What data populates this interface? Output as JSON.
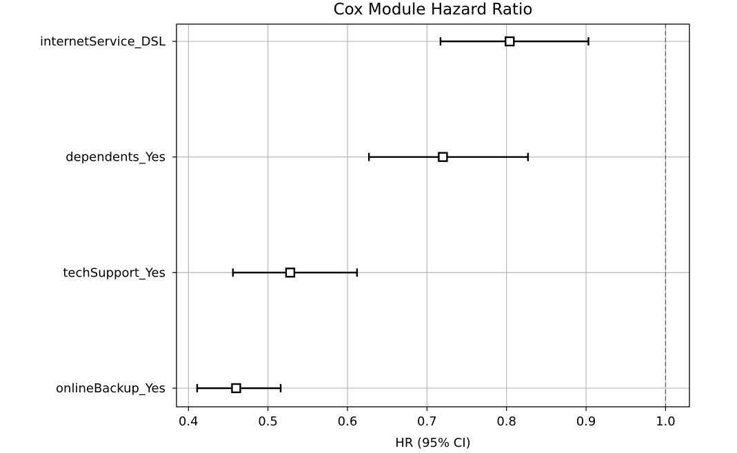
{
  "chart_data": {
    "type": "scatter",
    "title": "Cox Module Hazard Ratio",
    "xlabel": "HR (95% CI)",
    "ylabel": "",
    "xlim": [
      0.385,
      1.03
    ],
    "xticks": [
      0.4,
      0.5,
      0.6,
      0.7,
      0.8,
      0.9,
      1.0
    ],
    "xtick_labels": [
      "0.4",
      "0.5",
      "0.6",
      "0.7",
      "0.8",
      "0.9",
      "1.0"
    ],
    "grid": true,
    "reference_line": 1.0,
    "categories": [
      "internetService_DSL",
      "dependents_Yes",
      "techSupport_Yes",
      "onlineBackup_Yes"
    ],
    "hr": [
      0.804,
      0.72,
      0.528,
      0.46
    ],
    "ci_lower": [
      0.717,
      0.627,
      0.456,
      0.411
    ],
    "ci_upper": [
      0.903,
      0.827,
      0.612,
      0.516
    ],
    "colors": {
      "marker_edge": "#000000",
      "marker_fill": "#ffffff",
      "grid": "#b0b0b0",
      "reference": "#555555"
    }
  }
}
